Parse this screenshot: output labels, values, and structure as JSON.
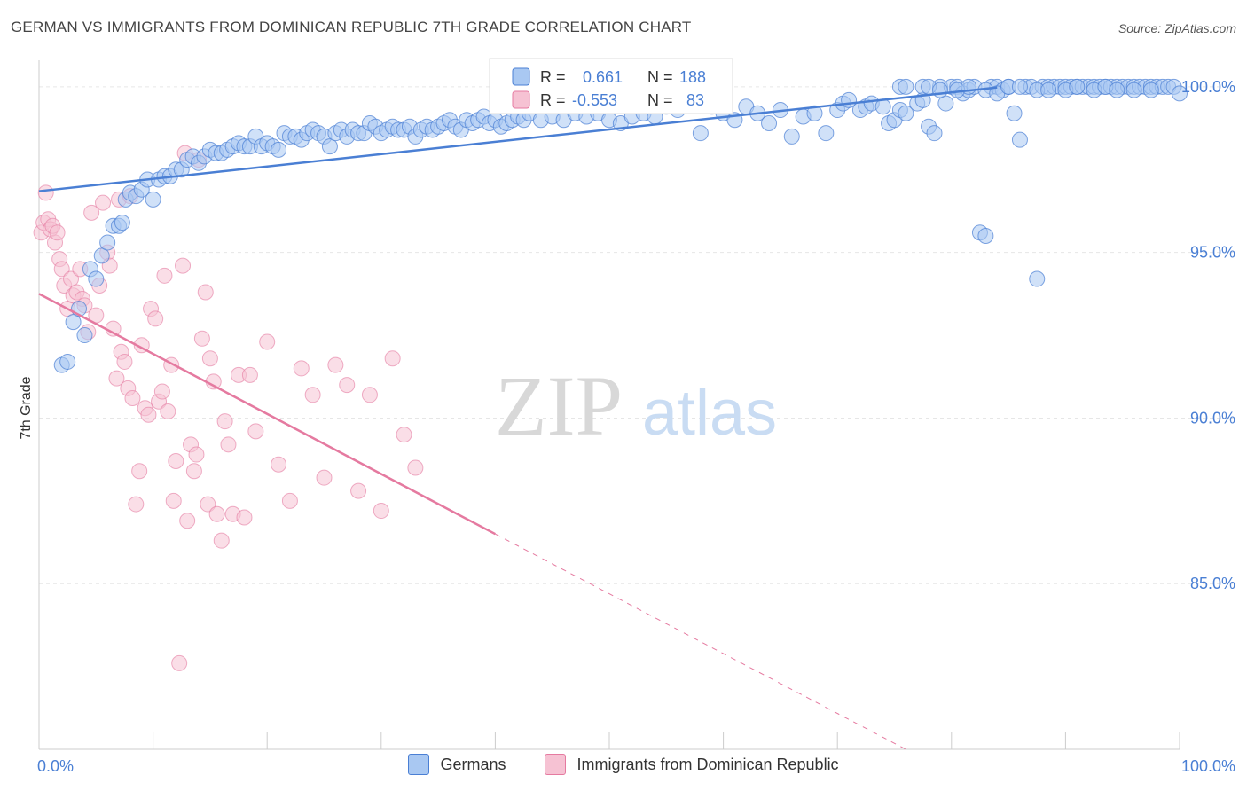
{
  "header": {
    "title": "GERMAN VS IMMIGRANTS FROM DOMINICAN REPUBLIC 7TH GRADE CORRELATION CHART",
    "source": "Source: ZipAtlas.com"
  },
  "watermark": {
    "zip": "ZIP",
    "atlas": "atlas"
  },
  "legend_box": {
    "row1": {
      "r_label": "R =",
      "r_value": "0.661",
      "n_label": "N =",
      "n_value": "188"
    },
    "row2": {
      "r_label": "R =",
      "r_value": "-0.553",
      "n_label": "N =",
      "n_value": "83"
    }
  },
  "chart_data": {
    "type": "scatter",
    "title": "GERMAN VS IMMIGRANTS FROM DOMINICAN REPUBLIC 7TH GRADE CORRELATION CHART",
    "xlabel": "",
    "ylabel": "7th Grade",
    "xlim": [
      0,
      100
    ],
    "ylim": [
      80,
      100.8
    ],
    "x_tick_labels": [
      "0.0%",
      "100.0%"
    ],
    "y_ticks": [
      100,
      95,
      90,
      85
    ],
    "y_tick_labels": [
      "100.0%",
      "95.0%",
      "90.0%",
      "85.0%"
    ],
    "grid": true,
    "legend_position": "bottom",
    "colors": {
      "german": "#4a7fd4",
      "german_fill": "#a9c8f2",
      "dominican": "#e57aa0",
      "dominican_fill": "#f6c2d3",
      "axis_text": "#4a7fd4"
    },
    "series": [
      {
        "name": "Germans",
        "r": 0.661,
        "n": 188,
        "trend": {
          "x": [
            0,
            84
          ],
          "y": [
            96.85,
            99.98
          ]
        },
        "points": [
          [
            2,
            91.6
          ],
          [
            2.5,
            91.7
          ],
          [
            3,
            92.9
          ],
          [
            3.5,
            93.3
          ],
          [
            4,
            92.5
          ],
          [
            4.5,
            94.5
          ],
          [
            5,
            94.2
          ],
          [
            5.5,
            94.9
          ],
          [
            6,
            95.3
          ],
          [
            6.5,
            95.8
          ],
          [
            7,
            95.8
          ],
          [
            7.3,
            95.9
          ],
          [
            7.6,
            96.6
          ],
          [
            8,
            96.8
          ],
          [
            8.5,
            96.7
          ],
          [
            9,
            96.9
          ],
          [
            9.5,
            97.2
          ],
          [
            10,
            96.6
          ],
          [
            10.5,
            97.2
          ],
          [
            11,
            97.3
          ],
          [
            11.5,
            97.3
          ],
          [
            12,
            97.5
          ],
          [
            12.5,
            97.5
          ],
          [
            13,
            97.8
          ],
          [
            13.5,
            97.9
          ],
          [
            14,
            97.7
          ],
          [
            14.5,
            97.9
          ],
          [
            15,
            98.1
          ],
          [
            15.5,
            98.0
          ],
          [
            16,
            98.0
          ],
          [
            16.5,
            98.1
          ],
          [
            17,
            98.2
          ],
          [
            17.5,
            98.3
          ],
          [
            18,
            98.2
          ],
          [
            18.5,
            98.2
          ],
          [
            19,
            98.5
          ],
          [
            19.5,
            98.2
          ],
          [
            20,
            98.3
          ],
          [
            20.5,
            98.2
          ],
          [
            21,
            98.1
          ],
          [
            21.5,
            98.6
          ],
          [
            22,
            98.5
          ],
          [
            22.5,
            98.5
          ],
          [
            23,
            98.4
          ],
          [
            23.5,
            98.6
          ],
          [
            24,
            98.7
          ],
          [
            24.5,
            98.6
          ],
          [
            25,
            98.5
          ],
          [
            25.5,
            98.2
          ],
          [
            26,
            98.6
          ],
          [
            26.5,
            98.7
          ],
          [
            27,
            98.5
          ],
          [
            27.5,
            98.7
          ],
          [
            28,
            98.6
          ],
          [
            28.5,
            98.6
          ],
          [
            29,
            98.9
          ],
          [
            29.5,
            98.8
          ],
          [
            30,
            98.6
          ],
          [
            30.5,
            98.7
          ],
          [
            31,
            98.8
          ],
          [
            31.5,
            98.7
          ],
          [
            32,
            98.7
          ],
          [
            32.5,
            98.8
          ],
          [
            33,
            98.5
          ],
          [
            33.5,
            98.7
          ],
          [
            34,
            98.8
          ],
          [
            34.5,
            98.7
          ],
          [
            35,
            98.8
          ],
          [
            35.5,
            98.9
          ],
          [
            36,
            99.0
          ],
          [
            36.5,
            98.8
          ],
          [
            37,
            98.7
          ],
          [
            37.5,
            99.0
          ],
          [
            38,
            98.9
          ],
          [
            38.5,
            99.0
          ],
          [
            39,
            99.1
          ],
          [
            39.5,
            98.9
          ],
          [
            40,
            99.0
          ],
          [
            40.5,
            98.8
          ],
          [
            41,
            98.9
          ],
          [
            41.5,
            99.0
          ],
          [
            42,
            99.1
          ],
          [
            42.5,
            99.0
          ],
          [
            43,
            99.2
          ],
          [
            44,
            99.0
          ],
          [
            45,
            99.1
          ],
          [
            46,
            99.0
          ],
          [
            47,
            99.2
          ],
          [
            48,
            99.1
          ],
          [
            49,
            99.2
          ],
          [
            50,
            99.0
          ],
          [
            51,
            98.9
          ],
          [
            52,
            99.1
          ],
          [
            53,
            99.2
          ],
          [
            54,
            99.1
          ],
          [
            55,
            99.4
          ],
          [
            56,
            99.3
          ],
          [
            57,
            99.5
          ],
          [
            58,
            98.6
          ],
          [
            59,
            99.4
          ],
          [
            60,
            99.2
          ],
          [
            61,
            99.0
          ],
          [
            62,
            99.4
          ],
          [
            63,
            99.2
          ],
          [
            64,
            98.9
          ],
          [
            65,
            99.3
          ],
          [
            66,
            98.5
          ],
          [
            67,
            99.1
          ],
          [
            68,
            99.2
          ],
          [
            69,
            98.6
          ],
          [
            70,
            99.3
          ],
          [
            70.5,
            99.5
          ],
          [
            71,
            99.6
          ],
          [
            72,
            99.3
          ],
          [
            72.5,
            99.4
          ],
          [
            73,
            99.5
          ],
          [
            74,
            99.4
          ],
          [
            74.5,
            98.9
          ],
          [
            75,
            99.0
          ],
          [
            75.5,
            99.3
          ],
          [
            76,
            99.2
          ],
          [
            77,
            99.5
          ],
          [
            77.5,
            99.6
          ],
          [
            78,
            98.8
          ],
          [
            78.5,
            98.6
          ],
          [
            79,
            100
          ],
          [
            79.5,
            99.5
          ],
          [
            80,
            100
          ],
          [
            80.5,
            100
          ],
          [
            81,
            99.8
          ],
          [
            81.5,
            99.9
          ],
          [
            82,
            100
          ],
          [
            82.5,
            95.6
          ],
          [
            83,
            95.5
          ],
          [
            83.5,
            100
          ],
          [
            84,
            100
          ],
          [
            84.5,
            99.9
          ],
          [
            85,
            100
          ],
          [
            85.5,
            99.2
          ],
          [
            86,
            98.4
          ],
          [
            86.5,
            100
          ],
          [
            87,
            100
          ],
          [
            87.5,
            94.2
          ],
          [
            88,
            100
          ],
          [
            88.5,
            100
          ],
          [
            89,
            100
          ],
          [
            89.5,
            100
          ],
          [
            90,
            100
          ],
          [
            90.5,
            100
          ],
          [
            91,
            100
          ],
          [
            91.5,
            100
          ],
          [
            92,
            100
          ],
          [
            92.5,
            100
          ],
          [
            93,
            100
          ],
          [
            93.5,
            100
          ],
          [
            94,
            100
          ],
          [
            94.5,
            100
          ],
          [
            95,
            100
          ],
          [
            95.5,
            100
          ],
          [
            96,
            100
          ],
          [
            96.5,
            100
          ],
          [
            97,
            100
          ],
          [
            97.5,
            100
          ],
          [
            98,
            100
          ],
          [
            98.5,
            100
          ],
          [
            99,
            100
          ],
          [
            99.5,
            100
          ],
          [
            100,
            99.8
          ],
          [
            75.5,
            100
          ],
          [
            76,
            100
          ],
          [
            77.5,
            100
          ],
          [
            78,
            100
          ],
          [
            79,
            99.9
          ],
          [
            80.5,
            99.9
          ],
          [
            81.5,
            100
          ],
          [
            83,
            99.9
          ],
          [
            84,
            99.8
          ],
          [
            85,
            100
          ],
          [
            86,
            100
          ],
          [
            87.5,
            99.9
          ],
          [
            88.5,
            99.9
          ],
          [
            90,
            99.9
          ],
          [
            91,
            100
          ],
          [
            92.5,
            99.9
          ],
          [
            93.5,
            100
          ],
          [
            94.5,
            99.9
          ],
          [
            96,
            99.9
          ],
          [
            97.5,
            99.9
          ]
        ]
      },
      {
        "name": "Immigrants from Dominican Republic",
        "r": -0.553,
        "n": 83,
        "trend": {
          "x": [
            0,
            40
          ],
          "y": [
            93.75,
            86.5
          ]
        },
        "trend_dashed": {
          "x": [
            40,
            76
          ],
          "y": [
            86.5,
            80.0
          ]
        },
        "points": [
          [
            0.2,
            95.6
          ],
          [
            0.4,
            95.9
          ],
          [
            0.6,
            96.8
          ],
          [
            0.8,
            96.0
          ],
          [
            1,
            95.7
          ],
          [
            1.2,
            95.8
          ],
          [
            1.4,
            95.3
          ],
          [
            1.6,
            95.6
          ],
          [
            1.8,
            94.8
          ],
          [
            2,
            94.5
          ],
          [
            2.2,
            94.0
          ],
          [
            2.5,
            93.3
          ],
          [
            2.8,
            94.2
          ],
          [
            3,
            93.7
          ],
          [
            3.3,
            93.8
          ],
          [
            3.6,
            94.5
          ],
          [
            3.8,
            93.6
          ],
          [
            4,
            93.4
          ],
          [
            4.3,
            92.6
          ],
          [
            4.6,
            96.2
          ],
          [
            5,
            93.1
          ],
          [
            5.3,
            94.0
          ],
          [
            5.6,
            96.5
          ],
          [
            6,
            95.0
          ],
          [
            6.2,
            94.6
          ],
          [
            6.5,
            92.7
          ],
          [
            6.8,
            91.2
          ],
          [
            7,
            96.6
          ],
          [
            7.2,
            92.0
          ],
          [
            7.5,
            91.7
          ],
          [
            7.8,
            90.9
          ],
          [
            8,
            96.7
          ],
          [
            8.2,
            90.6
          ],
          [
            8.5,
            87.4
          ],
          [
            8.8,
            88.4
          ],
          [
            9,
            92.2
          ],
          [
            9.3,
            90.3
          ],
          [
            9.6,
            90.1
          ],
          [
            9.8,
            93.3
          ],
          [
            10.2,
            93.0
          ],
          [
            10.5,
            90.5
          ],
          [
            10.8,
            90.8
          ],
          [
            11,
            94.3
          ],
          [
            11.3,
            90.2
          ],
          [
            11.6,
            91.6
          ],
          [
            11.8,
            87.5
          ],
          [
            12,
            88.7
          ],
          [
            12.3,
            82.6
          ],
          [
            12.6,
            94.6
          ],
          [
            12.8,
            98.0
          ],
          [
            13,
            86.9
          ],
          [
            13.3,
            89.2
          ],
          [
            13.6,
            88.4
          ],
          [
            13.8,
            88.9
          ],
          [
            14,
            97.8
          ],
          [
            14.3,
            92.4
          ],
          [
            14.6,
            93.8
          ],
          [
            14.8,
            87.4
          ],
          [
            15,
            91.8
          ],
          [
            15.3,
            91.1
          ],
          [
            15.6,
            87.1
          ],
          [
            16,
            86.3
          ],
          [
            16.3,
            89.9
          ],
          [
            16.6,
            89.2
          ],
          [
            17,
            87.1
          ],
          [
            17.5,
            91.3
          ],
          [
            18,
            87.0
          ],
          [
            18.5,
            91.3
          ],
          [
            19,
            89.6
          ],
          [
            20,
            92.3
          ],
          [
            21,
            88.6
          ],
          [
            22,
            87.5
          ],
          [
            23,
            91.5
          ],
          [
            24,
            90.7
          ],
          [
            25,
            88.2
          ],
          [
            26,
            91.6
          ],
          [
            27,
            91.0
          ],
          [
            28,
            87.8
          ],
          [
            29,
            90.7
          ],
          [
            30,
            87.2
          ],
          [
            31,
            91.8
          ],
          [
            32,
            89.5
          ],
          [
            33,
            88.5
          ]
        ]
      }
    ]
  },
  "bottom_legend": {
    "germans": "Germans",
    "dominican": "Immigrants from Dominican Republic"
  }
}
